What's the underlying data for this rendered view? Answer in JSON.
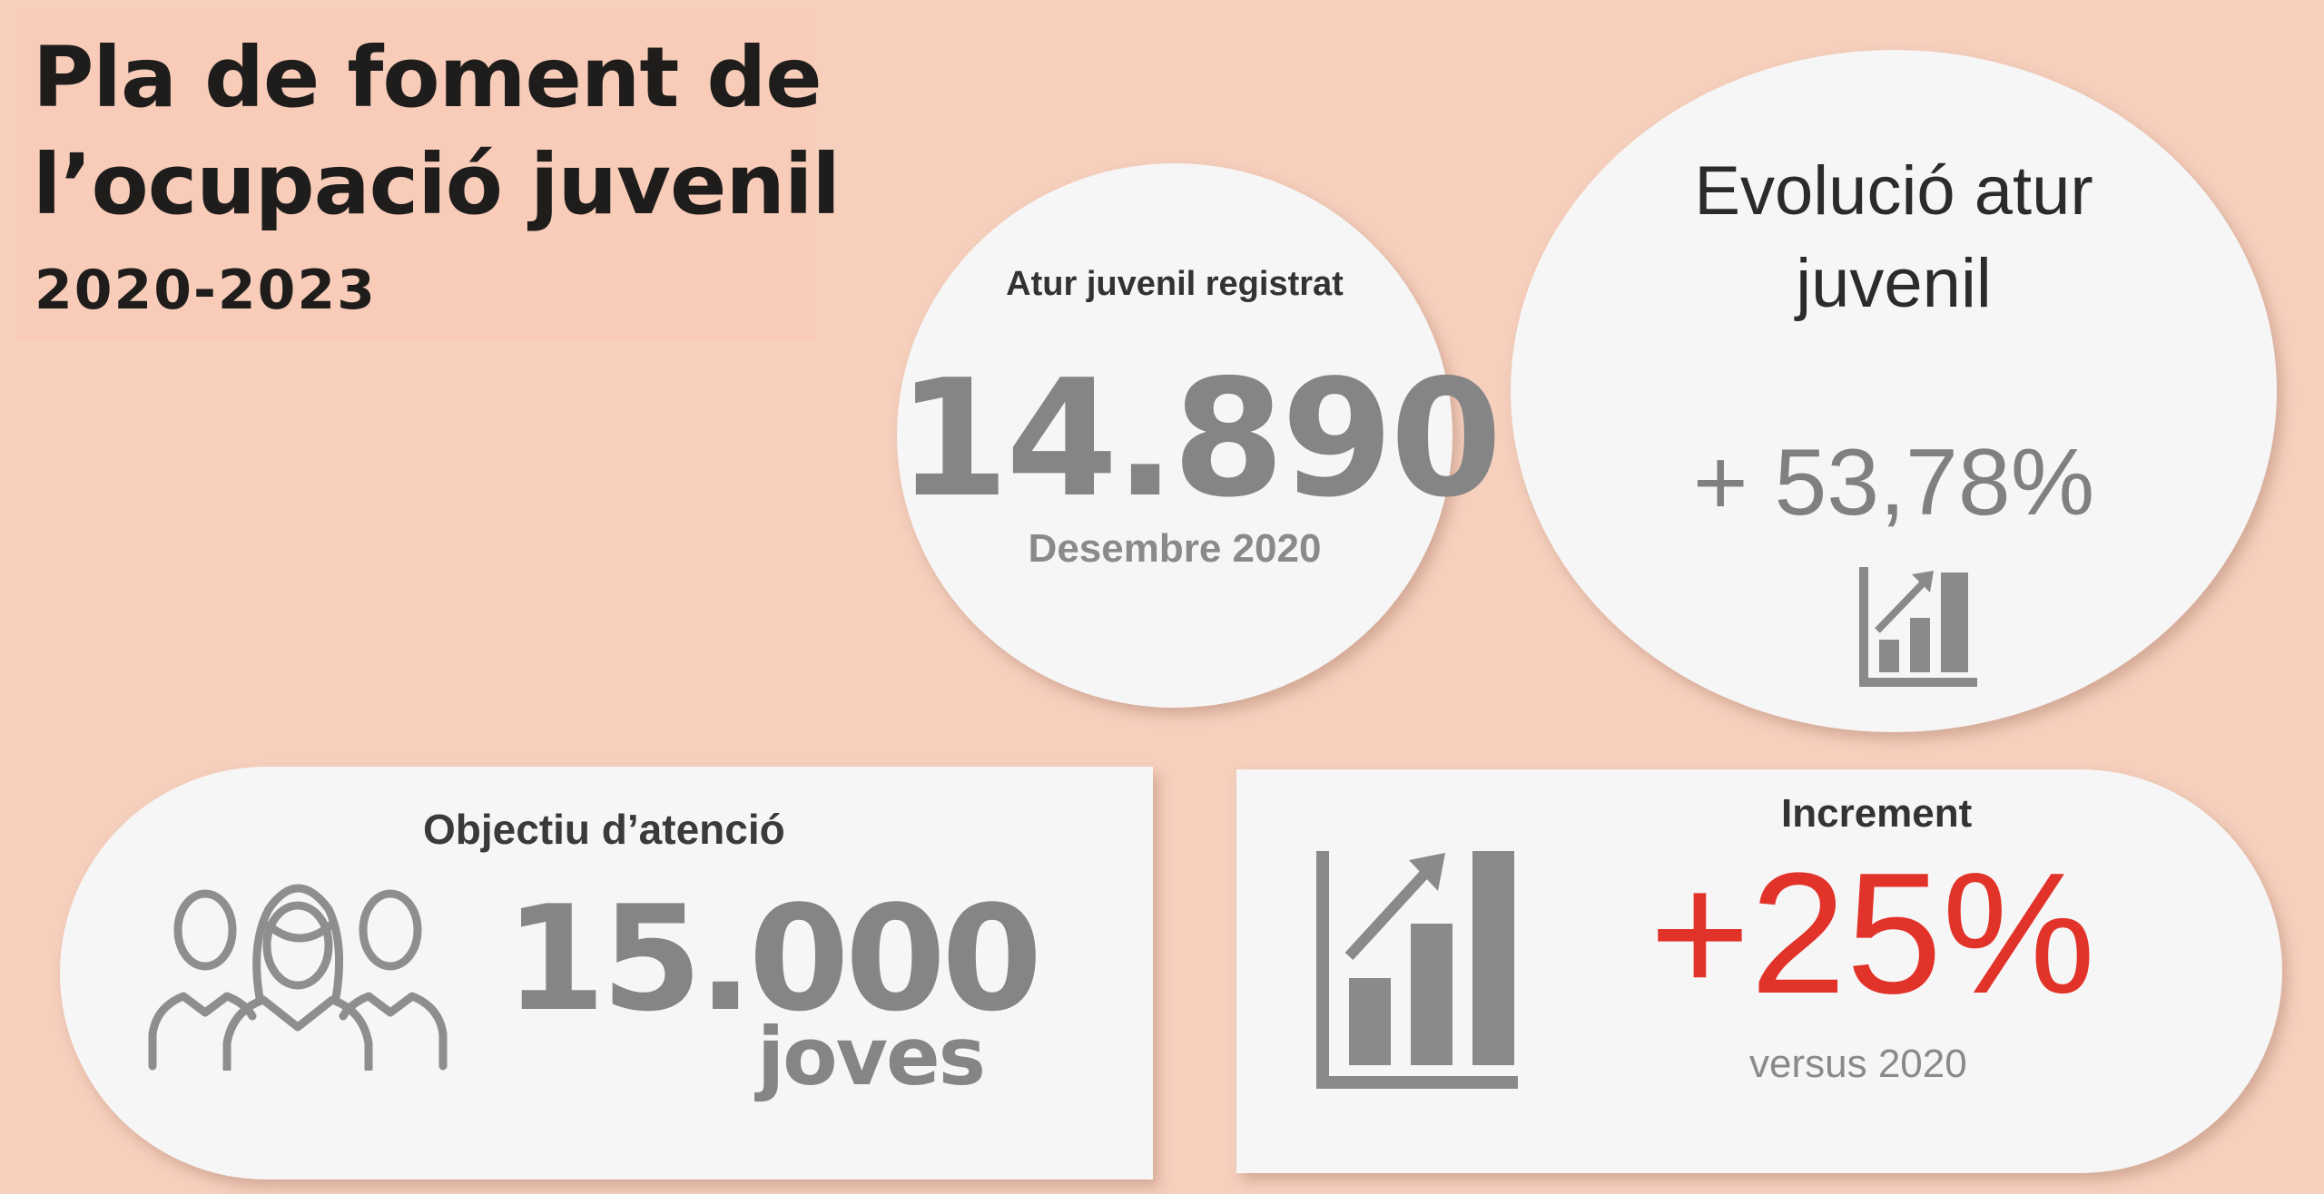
{
  "title": {
    "line1": "Pla de foment de",
    "line2": "l’ocupació juvenil",
    "years": "2020-2023"
  },
  "atur_registrat": {
    "label": "Atur juvenil registrat",
    "value": "14.890",
    "date": "Desembre 2020"
  },
  "evolucio": {
    "title_line1": "Evolució atur",
    "title_line2": "juvenil",
    "value": "+ 53,78%",
    "icon": "bar-chart-rising-icon"
  },
  "objectiu": {
    "label": "Objectiu d’atenció",
    "value": "15.000",
    "unit": "joves",
    "icon": "people-group-icon"
  },
  "increment": {
    "label": "Increment",
    "value": "+25%",
    "subtitle": "versus 2020",
    "icon": "bar-chart-rising-icon"
  },
  "colors": {
    "background": "#f6cfbd",
    "bubble": "#f6f6f6",
    "grey_value": "#858585",
    "accent_red": "#e2332a"
  }
}
